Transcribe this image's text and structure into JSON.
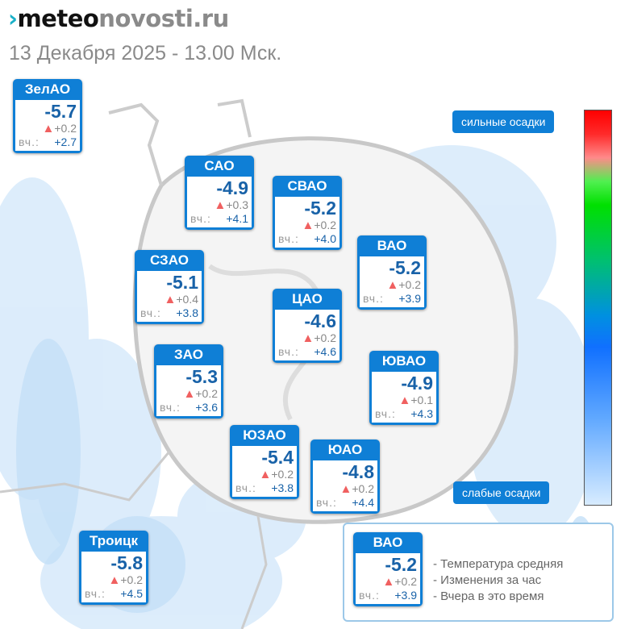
{
  "header": {
    "logo_part1": "meteo",
    "logo_part2": "novosti.ru",
    "date": "13 Декабря 2025 - 13.00 Мск."
  },
  "scale": {
    "top_label": "сильные осадки",
    "bottom_label": "слабые осадки",
    "colors": [
      "#ff0000",
      "#ff8a8a",
      "#00e000",
      "#1070ff",
      "#d8ecff"
    ]
  },
  "yesterday_prefix": "вч.:",
  "districts": [
    {
      "name": "ЗелАО",
      "temp": "-5.7",
      "change": "+0.2",
      "yesterday": "+2.7"
    },
    {
      "name": "САО",
      "temp": "-4.9",
      "change": "+0.3",
      "yesterday": "+4.1"
    },
    {
      "name": "СВАО",
      "temp": "-5.2",
      "change": "+0.2",
      "yesterday": "+4.0"
    },
    {
      "name": "ВАО",
      "temp": "-5.2",
      "change": "+0.2",
      "yesterday": "+3.9"
    },
    {
      "name": "СЗАО",
      "temp": "-5.1",
      "change": "+0.4",
      "yesterday": "+3.8"
    },
    {
      "name": "ЦАО",
      "temp": "-4.6",
      "change": "+0.2",
      "yesterday": "+4.6"
    },
    {
      "name": "ЗАО",
      "temp": "-5.3",
      "change": "+0.2",
      "yesterday": "+3.6"
    },
    {
      "name": "ЮВАО",
      "temp": "-4.9",
      "change": "+0.1",
      "yesterday": "+4.3"
    },
    {
      "name": "ЮЗАО",
      "temp": "-5.4",
      "change": "+0.2",
      "yesterday": "+3.8"
    },
    {
      "name": "ЮАО",
      "temp": "-4.8",
      "change": "+0.2",
      "yesterday": "+4.4"
    },
    {
      "name": "Троицк",
      "temp": "-5.8",
      "change": "+0.2",
      "yesterday": "+4.5"
    }
  ],
  "legend": {
    "sample": {
      "name": "ВАО",
      "temp": "-5.2",
      "change": "+0.2",
      "yesterday": "+3.9"
    },
    "lines": [
      "- Температура средняя",
      "- Изменения за час",
      "- Вчера в это время"
    ]
  }
}
